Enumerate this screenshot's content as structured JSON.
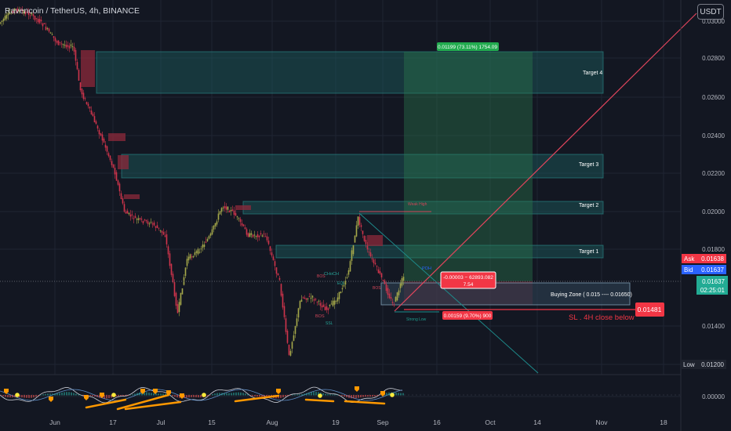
{
  "header": {
    "symbol_title": "Ravencoin / TetherUS, 4h, BINANCE",
    "currency_button": "USDT"
  },
  "price_axis": {
    "ticks": [
      "0.03000",
      "0.02800",
      "0.02600",
      "0.02400",
      "0.02200",
      "0.02000",
      "0.01800",
      "0.01400",
      "0.01200",
      "0.00000"
    ],
    "ask_label": "Ask",
    "ask_value": "0.01638",
    "bid_label": "Bid",
    "bid_value": "0.01637",
    "last_price": "0.01637",
    "countdown": "02:25:01",
    "low_label": "Low",
    "low_value": "0.01200",
    "sl_value": "0.01481"
  },
  "time_axis": {
    "ticks": [
      "Jun",
      "17",
      "Jul",
      "15",
      "Aug",
      "19",
      "Sep",
      "16",
      "Oct",
      "14",
      "Nov",
      "18"
    ]
  },
  "annotations": {
    "target_4": "Target 4",
    "target_3": "Target 3",
    "target_2": "Target 2",
    "target_1": "Target 1",
    "buying_zone": "Buying Zone ( 0.015  ---- 0.01650)",
    "sl_text": "SL . 4H close below",
    "position_profit": "0.01199 (73.11%) 1754.09",
    "position_loss": "0.00159 (9.70%) 900",
    "position_pnl_line1": "-0.00003 − 62893.082",
    "position_pnl_line2": "7.54",
    "weak_high": "Weak High",
    "strong_low": "Strong Low",
    "choch": "CHoCH",
    "bos_1": "BOS",
    "bos_2": "BOS",
    "bos_3": "BOS",
    "ssl": "SSL",
    "eql": "EQL",
    "poh": "POH"
  },
  "colors": {
    "background": "#131722",
    "candle_up": "#a6a94a",
    "candle_down": "#d0344c",
    "zone_teal": "#1e6f6f",
    "profit_green": "#2e7d4f",
    "loss_red": "#f23645",
    "bid_blue": "#2962ff",
    "last_green": "#22ab94",
    "trend_line": "#e0455c"
  }
}
